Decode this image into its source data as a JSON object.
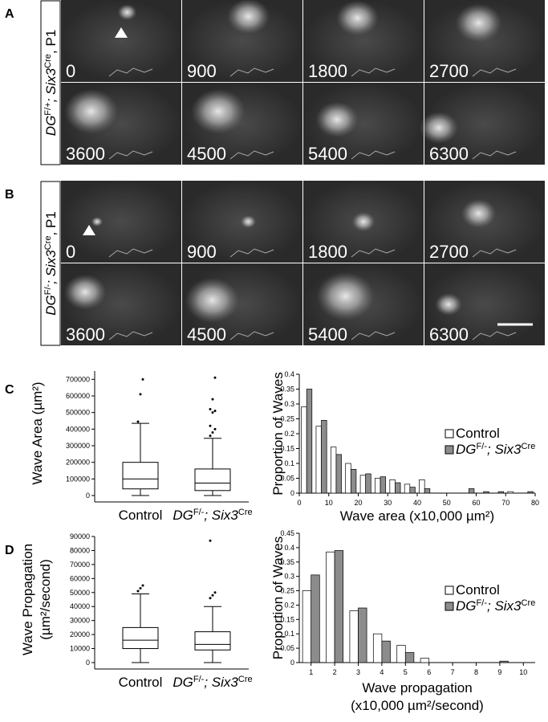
{
  "panels": [
    {
      "label": "A",
      "genotype": [
        {
          "text": "DG",
          "italic": true
        },
        {
          "text": "F/+",
          "sup": true
        },
        {
          "text": "; Six3",
          "italic": true
        },
        {
          "text": "Cre",
          "sup": true
        },
        {
          "text": ", P1"
        }
      ],
      "frames": [
        0,
        900,
        1800,
        2700,
        3600,
        4500,
        5400,
        6300
      ]
    },
    {
      "label": "B",
      "genotype": [
        {
          "text": "DG",
          "italic": true
        },
        {
          "text": "F/-",
          "sup": true
        },
        {
          "text": "; Six3",
          "italic": true
        },
        {
          "text": "Cre",
          "sup": true
        },
        {
          "text": ", P1"
        }
      ],
      "frames": [
        0,
        900,
        1800,
        2700,
        3600,
        4500,
        5400,
        6300
      ]
    }
  ],
  "chart_labels": [
    "C",
    "D"
  ],
  "chart_data": [
    {
      "type": "box",
      "y_label": "Wave Area (µm²)",
      "categories": [
        "Control",
        [
          {
            "text": "DG",
            "italic": true
          },
          {
            "text": "F/-",
            "sup": true
          },
          {
            "text": "; Six3",
            "italic": true
          },
          {
            "text": "Cre",
            "sup": true
          }
        ]
      ],
      "boxes": [
        {
          "min": 0,
          "q1": 40000,
          "median": 100000,
          "q3": 200000,
          "max": 435000,
          "outliers": [
            445000,
            610000,
            700000
          ]
        },
        {
          "min": 0,
          "q1": 30000,
          "median": 75000,
          "q3": 160000,
          "max": 345000,
          "outliers": [
            360000,
            380000,
            400000,
            420000,
            500000,
            510000,
            520000,
            580000,
            710000
          ]
        }
      ],
      "ylim": [
        0,
        750000
      ],
      "yticks": [
        0,
        100000,
        200000,
        300000,
        400000,
        500000,
        600000,
        700000
      ]
    },
    {
      "type": "bar",
      "y_label": "Proportion of Waves",
      "x_label": "Wave area (x10,000 µm²)",
      "x": [
        2.5,
        7.5,
        12.5,
        17.5,
        22.5,
        27.5,
        32.5,
        37.5,
        42.5,
        47.5,
        52.5,
        57.5,
        62.5,
        67.5,
        72.5,
        77.5
      ],
      "series": [
        {
          "name": "Control",
          "color": "#ffffff",
          "values": [
            0.29,
            0.225,
            0.155,
            0.1,
            0.06,
            0.05,
            0.045,
            0.03,
            0.045,
            0,
            0,
            0,
            0,
            0,
            0.005,
            0
          ]
        },
        {
          "name": [
            {
              "text": "DG",
              "italic": true
            },
            {
              "text": "F/-",
              "sup": true
            },
            {
              "text": "; Six3",
              "italic": true
            },
            {
              "text": "Cre",
              "sup": true
            }
          ],
          "color": "#8c8c8c",
          "values": [
            0.35,
            0.245,
            0.13,
            0.08,
            0.065,
            0.055,
            0.035,
            0.02,
            0.015,
            0,
            0,
            0.015,
            0.005,
            0.005,
            0,
            0.005
          ]
        }
      ],
      "xlim": [
        0,
        80
      ],
      "xticks": [
        0,
        10,
        20,
        30,
        40,
        50,
        60,
        70,
        80
      ],
      "ylim": [
        0,
        0.4
      ],
      "yticks": [
        0,
        0.05,
        0.1,
        0.15,
        0.2,
        0.25,
        0.3,
        0.35,
        0.4
      ],
      "legend": "right"
    },
    {
      "type": "box",
      "y_label": [
        "Wave Propagation",
        "(µm²/second)"
      ],
      "categories": [
        "Control",
        [
          {
            "text": "DG",
            "italic": true
          },
          {
            "text": "F/-",
            "sup": true
          },
          {
            "text": "; Six3",
            "italic": true
          },
          {
            "text": "Cre",
            "sup": true
          }
        ]
      ],
      "boxes": [
        {
          "min": 0,
          "q1": 10000,
          "median": 16000,
          "q3": 25000,
          "max": 49000,
          "outliers": [
            51000,
            53000,
            55000
          ]
        },
        {
          "min": 0,
          "q1": 9000,
          "median": 13000,
          "q3": 22000,
          "max": 40000,
          "outliers": [
            46000,
            48000,
            50000,
            87000
          ]
        }
      ],
      "ylim": [
        0,
        90000
      ],
      "yticks": [
        0,
        10000,
        20000,
        30000,
        40000,
        50000,
        60000,
        70000,
        80000,
        90000
      ]
    },
    {
      "type": "bar",
      "y_label": "Proportion of Waves",
      "x_label": [
        "Wave propagation",
        "(x10,000 µm²/second)"
      ],
      "x": [
        1,
        2,
        3,
        4,
        5,
        6,
        7,
        8,
        9,
        10
      ],
      "series": [
        {
          "name": "Control",
          "color": "#ffffff",
          "values": [
            0.25,
            0.385,
            0.18,
            0.1,
            0.06,
            0.015,
            0,
            0,
            0,
            0
          ]
        },
        {
          "name": [
            {
              "text": "DG",
              "italic": true
            },
            {
              "text": "F/-",
              "sup": true
            },
            {
              "text": "; Six3",
              "italic": true
            },
            {
              "text": "Cre",
              "sup": true
            }
          ],
          "color": "#8c8c8c",
          "values": [
            0.305,
            0.39,
            0.19,
            0.075,
            0.035,
            0,
            0,
            0,
            0.005,
            0
          ]
        }
      ],
      "xlim": [
        0.5,
        10.5
      ],
      "xticks": [
        1,
        2,
        3,
        4,
        5,
        6,
        7,
        8,
        9,
        10
      ],
      "ylim": [
        0,
        0.45
      ],
      "yticks": [
        0,
        0.05,
        0.1,
        0.15,
        0.2,
        0.25,
        0.3,
        0.35,
        0.4,
        0.45
      ],
      "legend": "right"
    }
  ]
}
